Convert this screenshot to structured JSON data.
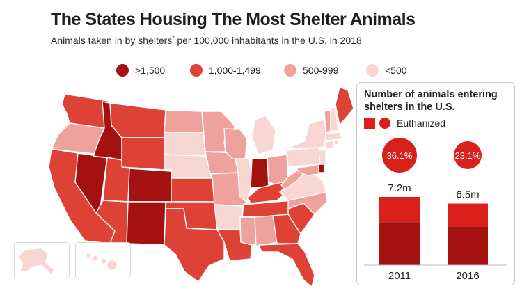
{
  "title": "The States Housing The Most Shelter Animals",
  "subtitle": "Animals taken in by shelters",
  "subtitle_marker": "*",
  "subtitle_rest": " per 100,000 inhabitants in the U.S. in 2018",
  "colors": {
    "gt1500": "#a3120f",
    "1000_1499": "#de4236",
    "500_999": "#efa29c",
    "lt500": "#f8d6d2",
    "euthanized": "#d9201a",
    "not_euthanized": "#a3120f"
  },
  "legend": [
    {
      "label": ">1,500",
      "key": "gt1500"
    },
    {
      "label": "1,000-1,499",
      "key": "1000_1499"
    },
    {
      "label": "500-999",
      "key": "500_999"
    },
    {
      "label": "<500",
      "key": "lt500"
    }
  ],
  "map": {
    "states": {
      "WA": "1000_1499",
      "OR": "500_999",
      "CA": "1000_1499",
      "NV": "gt1500",
      "ID": "gt1500",
      "MT": "1000_1499",
      "WY": "1000_1499",
      "UT": "1000_1499",
      "AZ": "1000_1499",
      "CO": "gt1500",
      "NM": "gt1500",
      "ND": "500_999",
      "SD": "lt500",
      "NE": "lt500",
      "KS": "1000_1499",
      "OK": "1000_1499",
      "TX": "1000_1499",
      "MN": "500_999",
      "IA": "500_999",
      "MO": "500_999",
      "AR": "lt500",
      "LA": "1000_1499",
      "WI": "500_999",
      "IL": "lt500",
      "MI": "lt500",
      "IN": "gt1500",
      "OH": "500_999",
      "KY": "1000_1499",
      "TN": "1000_1499",
      "MS": "500_999",
      "AL": "500_999",
      "GA": "1000_1499",
      "FL": "1000_1499",
      "SC": "1000_1499",
      "NC": "500_999",
      "VA": "lt500",
      "WV": "500_999",
      "PA": "lt500",
      "NY": "lt500",
      "NJ": "lt500",
      "DE": "gt1500",
      "MD": "500_999",
      "CT": "lt500",
      "RI": "lt500",
      "MA": "lt500",
      "VT": "500_999",
      "NH": "lt500",
      "ME": "1000_1499",
      "AK": "lt500",
      "HI": "lt500"
    }
  },
  "panel": {
    "title": "Number of animals entering shelters in the U.S.",
    "legend_label": "Euthanized"
  },
  "chart_data": {
    "type": "bar",
    "title": "Number of animals entering shelters in the U.S.",
    "categories": [
      "2011",
      "2016"
    ],
    "values": [
      7.2,
      6.5
    ],
    "value_labels": [
      "7.2m",
      "6.5m"
    ],
    "euthanized_pct": [
      36.1,
      23.1
    ],
    "euthanized_labels": [
      "36.1%",
      "23.1%"
    ],
    "unit": "million animals",
    "ylim": [
      0,
      7.2
    ]
  }
}
